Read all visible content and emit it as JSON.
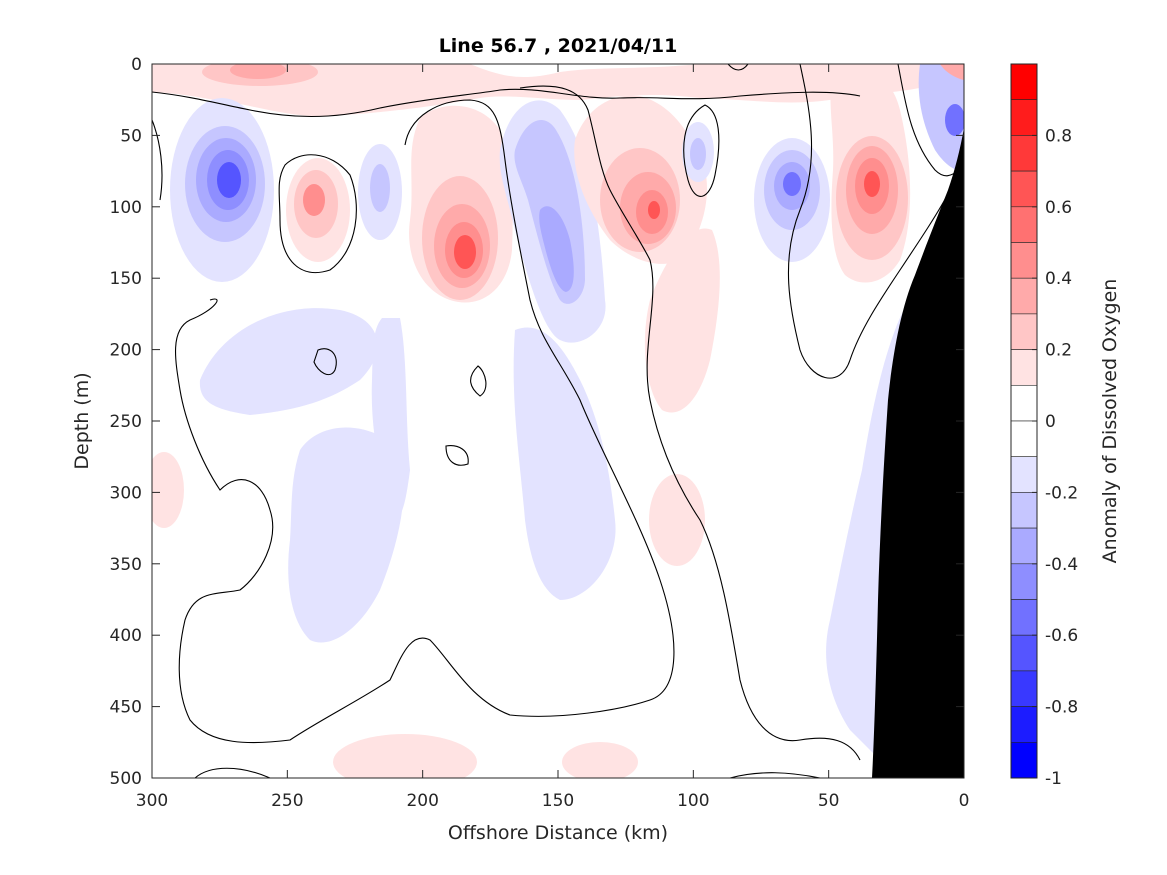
{
  "chart_data": {
    "type": "heatmap",
    "title": "Line 56.7 , 2021/04/11",
    "xlabel": "Offshore Distance (km)",
    "ylabel": "Depth (m)",
    "colorbar_label": "Anomaly of Dissolved Oxygen",
    "x_range": [
      300,
      0
    ],
    "x_reversed": true,
    "y_range": [
      0,
      500
    ],
    "y_reversed": true,
    "x_ticks": [
      300,
      250,
      200,
      150,
      100,
      50,
      0
    ],
    "y_ticks": [
      0,
      50,
      100,
      150,
      200,
      250,
      300,
      350,
      400,
      450,
      500
    ],
    "colorbar_range": [
      -1,
      1
    ],
    "colorbar_ticks": [
      0.8,
      0.6,
      0.4,
      0.2,
      0,
      -0.2,
      -0.4,
      -0.6,
      -0.8,
      -1
    ],
    "colorbar_levels": [
      {
        "min": 0.9,
        "max": 1.0,
        "color": "#ff0000"
      },
      {
        "min": 0.8,
        "max": 0.9,
        "color": "#ff1c1c"
      },
      {
        "min": 0.7,
        "max": 0.8,
        "color": "#ff3939"
      },
      {
        "min": 0.6,
        "max": 0.7,
        "color": "#ff5555"
      },
      {
        "min": 0.5,
        "max": 0.6,
        "color": "#ff7171"
      },
      {
        "min": 0.4,
        "max": 0.5,
        "color": "#ff8e8e"
      },
      {
        "min": 0.3,
        "max": 0.4,
        "color": "#ffaaaa"
      },
      {
        "min": 0.2,
        "max": 0.3,
        "color": "#ffc6c6"
      },
      {
        "min": 0.1,
        "max": 0.2,
        "color": "#ffe3e3"
      },
      {
        "min": 0.0,
        "max": 0.1,
        "color": "#ffffff"
      },
      {
        "min": -0.1,
        "max": 0.0,
        "color": "#ffffff"
      },
      {
        "min": -0.2,
        "max": -0.1,
        "color": "#e3e3ff"
      },
      {
        "min": -0.3,
        "max": -0.2,
        "color": "#c6c6ff"
      },
      {
        "min": -0.4,
        "max": -0.3,
        "color": "#aaaaff"
      },
      {
        "min": -0.5,
        "max": -0.4,
        "color": "#8e8eff"
      },
      {
        "min": -0.6,
        "max": -0.5,
        "color": "#7171ff"
      },
      {
        "min": -0.7,
        "max": -0.6,
        "color": "#5555ff"
      },
      {
        "min": -0.8,
        "max": -0.7,
        "color": "#3939ff"
      },
      {
        "min": -0.9,
        "max": -0.8,
        "color": "#1c1cff"
      },
      {
        "min": -1.0,
        "max": -0.9,
        "color": "#0000ff"
      }
    ],
    "anomaly_features": [
      {
        "x": 272,
        "y": 82,
        "value": -0.7
      },
      {
        "x": 240,
        "y": 96,
        "value": 0.45
      },
      {
        "x": 182,
        "y": 128,
        "value": 0.6
      },
      {
        "x": 150,
        "y": 120,
        "value": -0.4
      },
      {
        "x": 115,
        "y": 100,
        "value": 0.55
      },
      {
        "x": 98,
        "y": 72,
        "value": -0.25
      },
      {
        "x": 65,
        "y": 82,
        "value": -0.5
      },
      {
        "x": 34,
        "y": 82,
        "value": 0.55
      },
      {
        "x": 3,
        "y": 38,
        "value": -0.6
      },
      {
        "x": 258,
        "y": 8,
        "value": 0.35
      },
      {
        "x": 100,
        "y": 300,
        "value": 0.15
      },
      {
        "x": 170,
        "y": 360,
        "value": -0.15
      }
    ],
    "land_mask": "shelf",
    "grid": false,
    "colorbar_position": "right"
  }
}
